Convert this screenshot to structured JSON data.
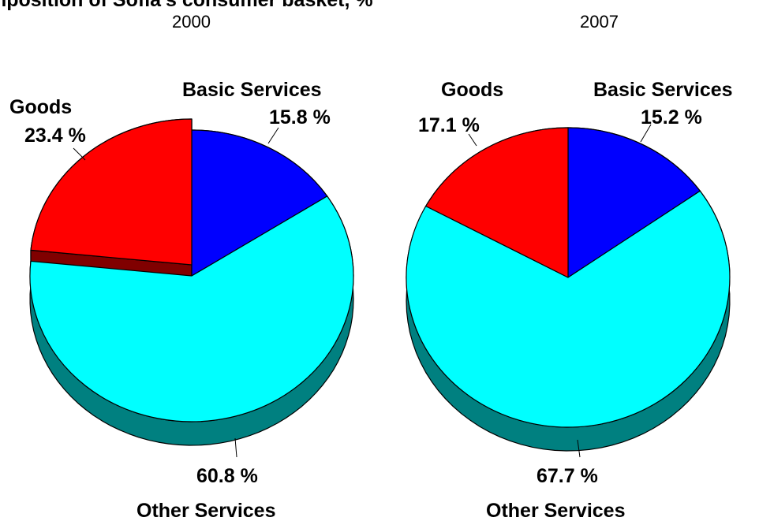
{
  "page": {
    "top_text": "mposition of Sofia's consumer basket, %"
  },
  "chart_data": [
    {
      "type": "pie",
      "title": "2000",
      "slices": [
        {
          "label": "Basic Services",
          "value": 15.8,
          "value_text": "15.8 %",
          "color": "#0000ff",
          "side_color": "#000080"
        },
        {
          "label": "Other Services",
          "value": 60.8,
          "value_text": "60.8 %",
          "color": "#00ffff",
          "side_color": "#008080"
        },
        {
          "label": "Goods",
          "value": 23.4,
          "value_text": "23.4 %",
          "color": "#ff0000",
          "side_color": "#800000"
        }
      ]
    },
    {
      "type": "pie",
      "title": "2007",
      "slices": [
        {
          "label": "Basic Services",
          "value": 15.2,
          "value_text": "15.2 %",
          "color": "#0000ff",
          "side_color": "#000080"
        },
        {
          "label": "Other Services",
          "value": 67.7,
          "value_text": "67.7 %",
          "color": "#00ffff",
          "side_color": "#008080"
        },
        {
          "label": "Goods",
          "value": 17.1,
          "value_text": "17.1 %",
          "color": "#ff0000",
          "side_color": "#800000"
        }
      ]
    }
  ]
}
